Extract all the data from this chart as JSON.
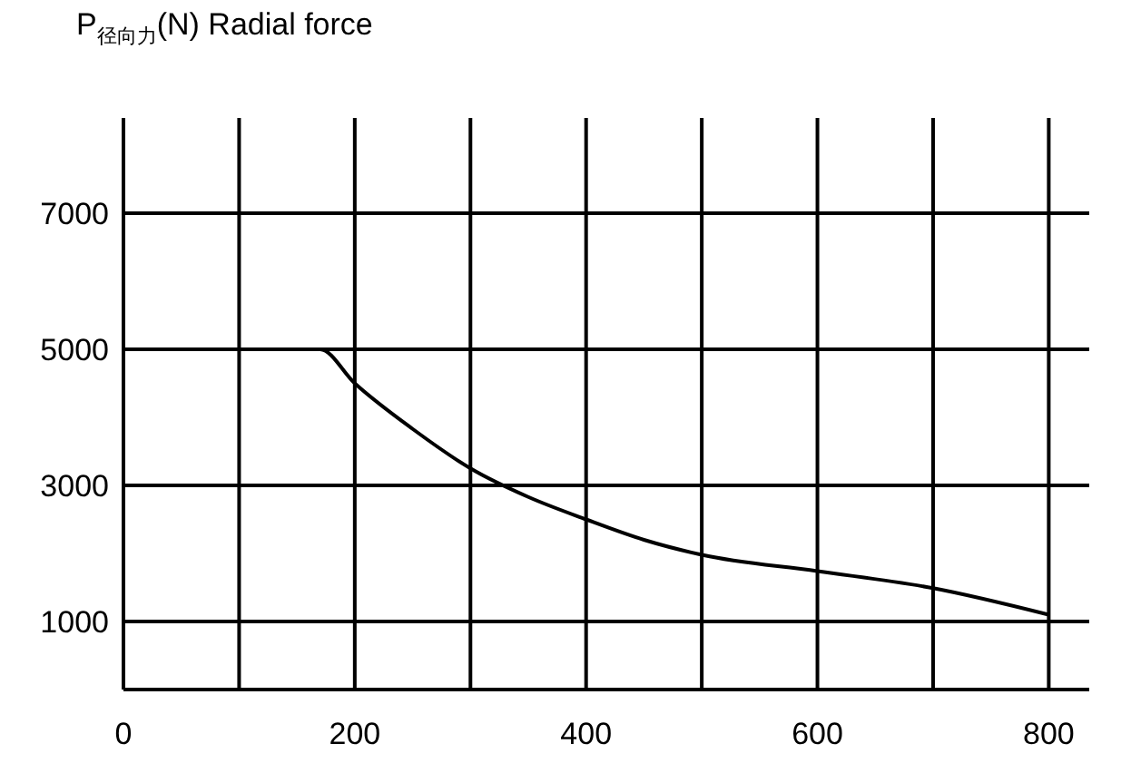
{
  "chart_data": {
    "type": "line",
    "ylabel": "P$_{径向力}$(N) Radial force",
    "x": [
      0,
      170,
      200,
      250,
      300,
      350,
      400,
      450,
      500,
      600,
      700,
      800
    ],
    "values": [
      5000,
      5000,
      4500,
      3830,
      3250,
      2830,
      2500,
      2200,
      1980,
      1740,
      1490,
      1100
    ],
    "color": "#000000",
    "xlim": [
      0,
      835
    ],
    "xticks": [
      0,
      {
        "value": 100,
        "label": null
      },
      200,
      {
        "value": 300,
        "label": null
      },
      400,
      {
        "value": 500,
        "label": null
      },
      600,
      {
        "value": 700,
        "label": null
      },
      800
    ],
    "ylim": [
      0,
      8400
    ],
    "yticks": [
      1000,
      3000,
      5000,
      7000
    ],
    "grid": true
  }
}
